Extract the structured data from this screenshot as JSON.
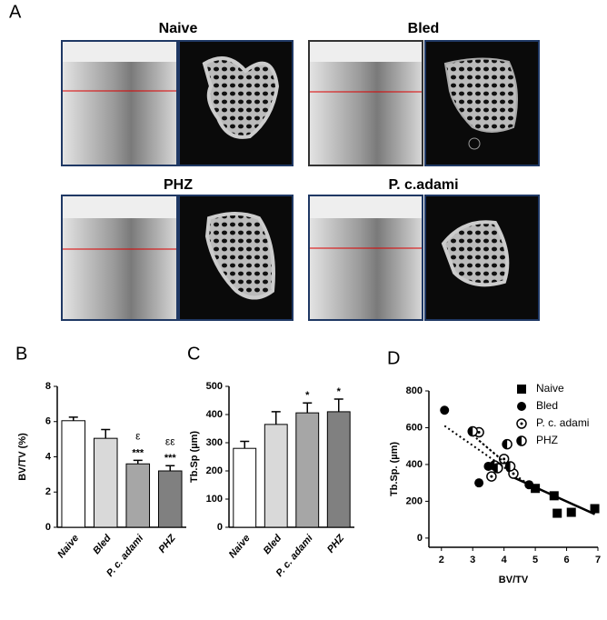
{
  "panel_a": {
    "label": "A",
    "groups": [
      "Naive",
      "Bled",
      "PHZ",
      "P. c.adami"
    ]
  },
  "chart_data": [
    {
      "type": "bar",
      "panel": "B",
      "ylabel": "BV/TV (%)",
      "categories": [
        "Naive",
        "Bled",
        "P. c. adami",
        "PHZ"
      ],
      "values": [
        6.05,
        5.05,
        3.6,
        3.2
      ],
      "errors": [
        0.2,
        0.5,
        0.2,
        0.3
      ],
      "colors": [
        "#ffffff",
        "#d9d9d9",
        "#a6a6a6",
        "#808080"
      ],
      "significance": [
        null,
        null,
        "***",
        "***"
      ],
      "symbols": [
        null,
        null,
        "ε",
        "εε"
      ],
      "ylim": [
        0,
        8
      ],
      "yticks": [
        0,
        2,
        4,
        6,
        8
      ]
    },
    {
      "type": "bar",
      "panel": "C",
      "ylabel": "Tb.Sp (µm)",
      "categories": [
        "Naive",
        "Bled",
        "P. c. adami",
        "PHZ"
      ],
      "values": [
        280,
        365,
        406,
        410
      ],
      "errors": [
        25,
        45,
        35,
        45
      ],
      "colors": [
        "#ffffff",
        "#d9d9d9",
        "#a6a6a6",
        "#808080"
      ],
      "significance": [
        null,
        null,
        "*",
        "*"
      ],
      "ylim": [
        0,
        500
      ],
      "yticks": [
        0,
        100,
        200,
        300,
        400,
        500
      ]
    },
    {
      "type": "scatter",
      "panel": "D",
      "xlabel": "BV/TV",
      "ylabel": "Tb.Sp. (µm)",
      "xlim": [
        1.6,
        7
      ],
      "xticks": [
        2,
        3,
        4,
        5,
        6,
        7
      ],
      "ylim": [
        -50,
        800
      ],
      "yticks": [
        0,
        200,
        400,
        600,
        800
      ],
      "series": [
        {
          "name": "Naive",
          "marker": "square",
          "color": "#000000",
          "line": "solid",
          "x": [
            5.0,
            5.6,
            5.7,
            6.15,
            6.9
          ],
          "values": [
            270,
            230,
            135,
            140,
            160
          ],
          "fit": {
            "x": [
              4.3,
              6.9
            ],
            "y": [
              330,
              130
            ]
          }
        },
        {
          "name": "Bled",
          "marker": "circle",
          "color": "#000000",
          "line": "dotted",
          "x": [
            2.1,
            3.2,
            3.5,
            4.2,
            4.8
          ],
          "values": [
            695,
            300,
            390,
            380,
            290
          ],
          "fit": {
            "x": [
              2.1,
              4.8
            ],
            "y": [
              610,
              290
            ]
          }
        },
        {
          "name": "P. c. adami",
          "marker": "circle-dot",
          "color": "#000000",
          "line": "dotted",
          "x": [
            3.2,
            3.6,
            3.8,
            4.0,
            4.3
          ],
          "values": [
            575,
            335,
            385,
            430,
            350
          ],
          "fit": {
            "x": [
              3.2,
              4.4
            ],
            "y": [
              530,
              360
            ]
          }
        },
        {
          "name": "PHZ",
          "marker": "half",
          "color": "#000000",
          "line": "dotted",
          "x": [
            3.0,
            3.7,
            3.8,
            4.1,
            4.2
          ],
          "values": [
            580,
            395,
            380,
            510,
            390
          ],
          "fit": {
            "x": [
              3.0,
              4.3
            ],
            "y": [
              560,
              370
            ]
          }
        }
      ]
    }
  ]
}
